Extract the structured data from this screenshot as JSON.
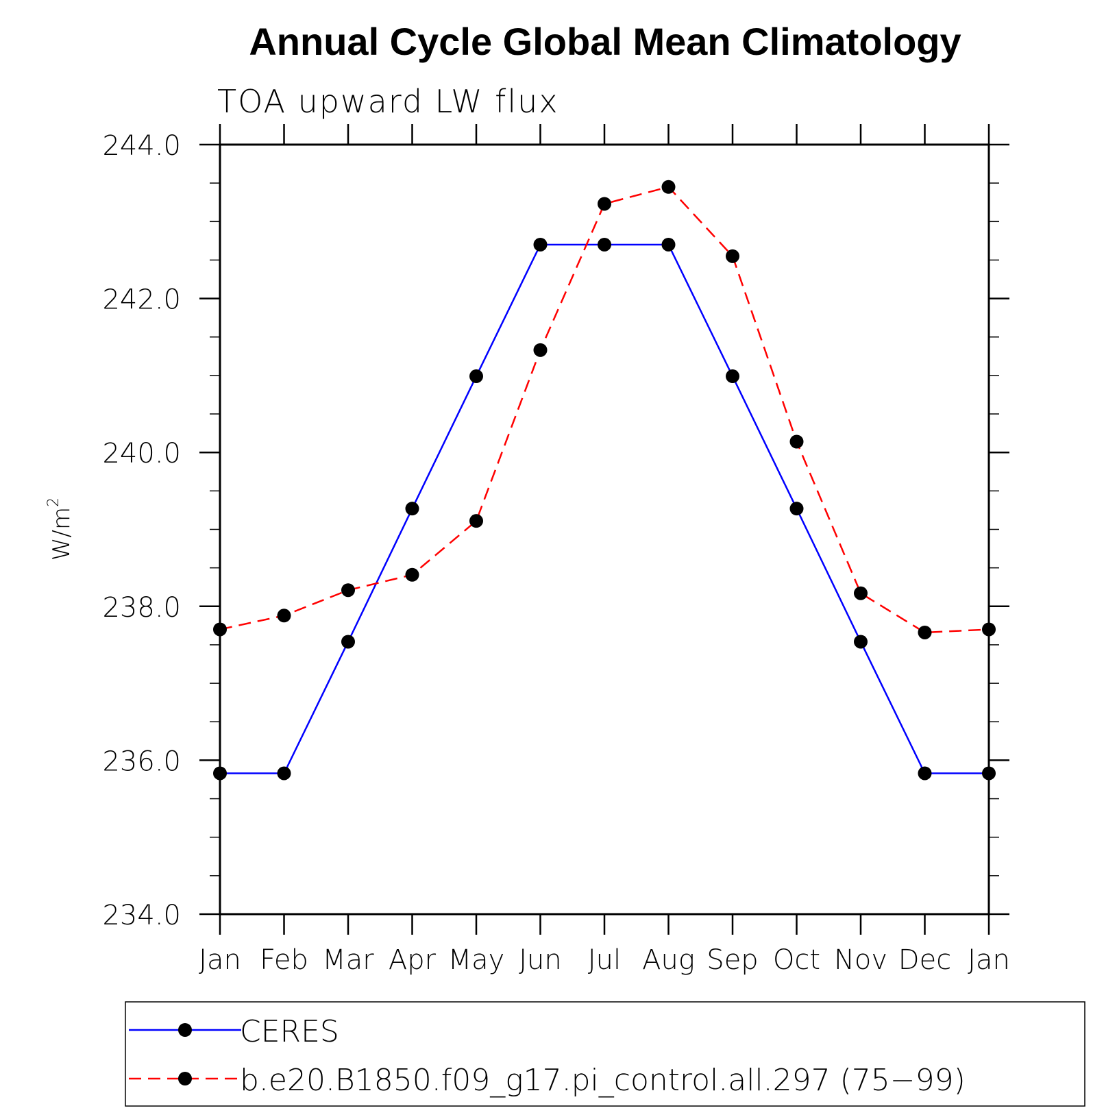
{
  "chart_data": {
    "type": "line",
    "title": "Annual Cycle Global Mean Climatology",
    "subtitle": "TOA upward LW flux",
    "ylabel_base": "W/m",
    "ylabel_sup": "2",
    "categories": [
      "Jan",
      "Feb",
      "Mar",
      "Apr",
      "May",
      "Jun",
      "Jul",
      "Aug",
      "Sep",
      "Oct",
      "Nov",
      "Dec",
      "Jan"
    ],
    "ylim": [
      234.0,
      244.0
    ],
    "yticks": [
      234.0,
      236.0,
      238.0,
      240.0,
      242.0,
      244.0
    ],
    "ytick_labels": [
      "234.0",
      "236.0",
      "238.0",
      "240.0",
      "242.0",
      "244.0"
    ],
    "series": [
      {
        "name": "CERES",
        "color": "#0000ff",
        "style": "solid",
        "marker": "filled-circle",
        "values": [
          235.83,
          235.83,
          237.54,
          239.27,
          240.99,
          242.7,
          242.7,
          242.7,
          240.99,
          239.27,
          237.54,
          235.83,
          235.83
        ]
      },
      {
        "name": "b.e20.B1850.f09_g17.pi_control.all.297 (75−99)",
        "color": "#ff0000",
        "style": "dashed",
        "marker": "filled-circle",
        "values": [
          237.7,
          237.88,
          238.21,
          238.41,
          239.11,
          241.33,
          243.23,
          243.45,
          242.55,
          240.14,
          238.17,
          237.66,
          237.7
        ]
      }
    ],
    "grid": false,
    "legend_position": "bottom"
  }
}
